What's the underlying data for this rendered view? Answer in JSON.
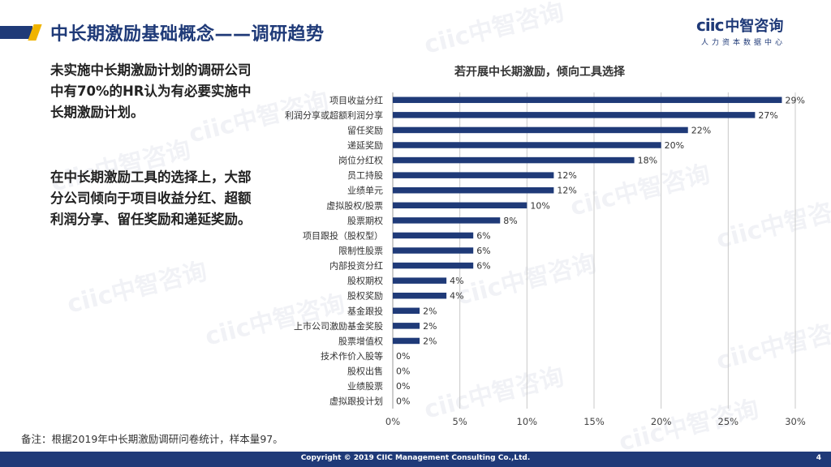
{
  "header": {
    "title": "中长期激励基础概念——调研趋势",
    "logo_mark": "ciic",
    "logo_name": "中智咨询",
    "logo_sub": "人力资本数据中心"
  },
  "body": {
    "paragraph1": "未实施中长期激励计划的调研公司中有70%的HR认为有必要实施中长期激励计划。",
    "paragraph2": "在中长期激励工具的选择上，大部分公司倾向于项目收益分红、超额利润分享、留任奖励和递延奖励。",
    "note": "备注：根据2019年中长期激励调研问卷统计，样本量97。"
  },
  "footer": {
    "copyright": "Copyright © 2019 CIIC Management Consulting Co.,Ltd.",
    "page_number": "4"
  },
  "colors": {
    "brand": "#1f3a78",
    "bar": "#1f3a78",
    "accent": "#f0b400",
    "grid": "#c8c8c8"
  },
  "chart_data": {
    "type": "bar",
    "orientation": "horizontal",
    "title": "若开展中长期激励，倾向工具选择",
    "categories": [
      "项目收益分红",
      "利润分享或超额利润分享",
      "留任奖励",
      "递延奖励",
      "岗位分红权",
      "员工持股",
      "业绩单元",
      "虚拟股权/股票",
      "股票期权",
      "项目跟投（股权型）",
      "限制性股票",
      "内部投资分红",
      "股权期权",
      "股权奖励",
      "基金跟投",
      "上市公司激励基金奖股",
      "股票增值权",
      "技术作价入股等",
      "股权出售",
      "业绩股票",
      "虚拟跟投计划"
    ],
    "values": [
      29,
      27,
      22,
      20,
      18,
      12,
      12,
      10,
      8,
      6,
      6,
      6,
      4,
      4,
      2,
      2,
      2,
      0,
      0,
      0,
      0
    ],
    "value_labels": [
      "29%",
      "27%",
      "22%",
      "20%",
      "18%",
      "12%",
      "12%",
      "10%",
      "8%",
      "6%",
      "6%",
      "6%",
      "4%",
      "4%",
      "2%",
      "2%",
      "2%",
      "0%",
      "0%",
      "0%",
      "0%"
    ],
    "xticks": [
      0,
      5,
      10,
      15,
      20,
      25,
      30
    ],
    "xtick_labels": [
      "0%",
      "5%",
      "10%",
      "15%",
      "20%",
      "25%",
      "30%"
    ],
    "xlim": [
      0,
      30
    ],
    "grid": true
  }
}
